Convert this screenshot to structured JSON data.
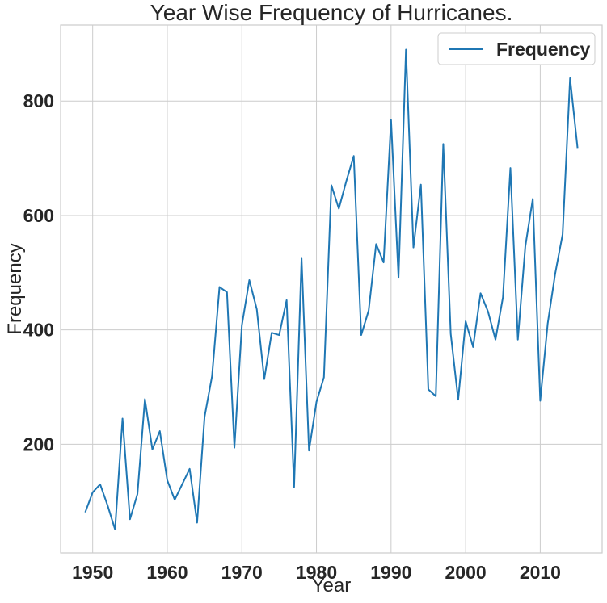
{
  "chart_data": {
    "type": "line",
    "title": "Year Wise Frequency of Hurricanes.",
    "xlabel": "Year",
    "ylabel": "Frequency",
    "xlim": [
      1945.7,
      2018.3
    ],
    "ylim": [
      10,
      933
    ],
    "xticks": [
      1950,
      1960,
      1970,
      1980,
      1990,
      2000,
      2010
    ],
    "yticks": [
      200,
      400,
      600,
      800
    ],
    "grid": true,
    "legend_position": "top-right",
    "line_color": "#1f77b4",
    "series": [
      {
        "name": "Frequency",
        "x": [
          1949,
          1950,
          1951,
          1952,
          1953,
          1954,
          1955,
          1956,
          1957,
          1958,
          1959,
          1960,
          1961,
          1962,
          1963,
          1964,
          1965,
          1966,
          1967,
          1968,
          1969,
          1970,
          1971,
          1972,
          1973,
          1974,
          1975,
          1976,
          1977,
          1978,
          1979,
          1980,
          1981,
          1982,
          1983,
          1984,
          1985,
          1986,
          1987,
          1988,
          1989,
          1990,
          1991,
          1992,
          1993,
          1994,
          1995,
          1996,
          1997,
          1998,
          1999,
          2000,
          2001,
          2002,
          2003,
          2004,
          2005,
          2006,
          2007,
          2008,
          2009,
          2010,
          2011,
          2012,
          2013,
          2014,
          2015
        ],
        "values": [
          81,
          116,
          130,
          93,
          51,
          245,
          69,
          113,
          279,
          191,
          223,
          137,
          103,
          130,
          157,
          63,
          248,
          319,
          475,
          466,
          194,
          408,
          487,
          436,
          314,
          395,
          391,
          452,
          125,
          526,
          189,
          274,
          317,
          653,
          612,
          660,
          704,
          391,
          434,
          550,
          518,
          767,
          491,
          890,
          544,
          654,
          296,
          284,
          725,
          393,
          278,
          415,
          370,
          464,
          432,
          383,
          457,
          683,
          383,
          546,
          629,
          276,
          411,
          498,
          567,
          840,
          718
        ]
      }
    ]
  }
}
